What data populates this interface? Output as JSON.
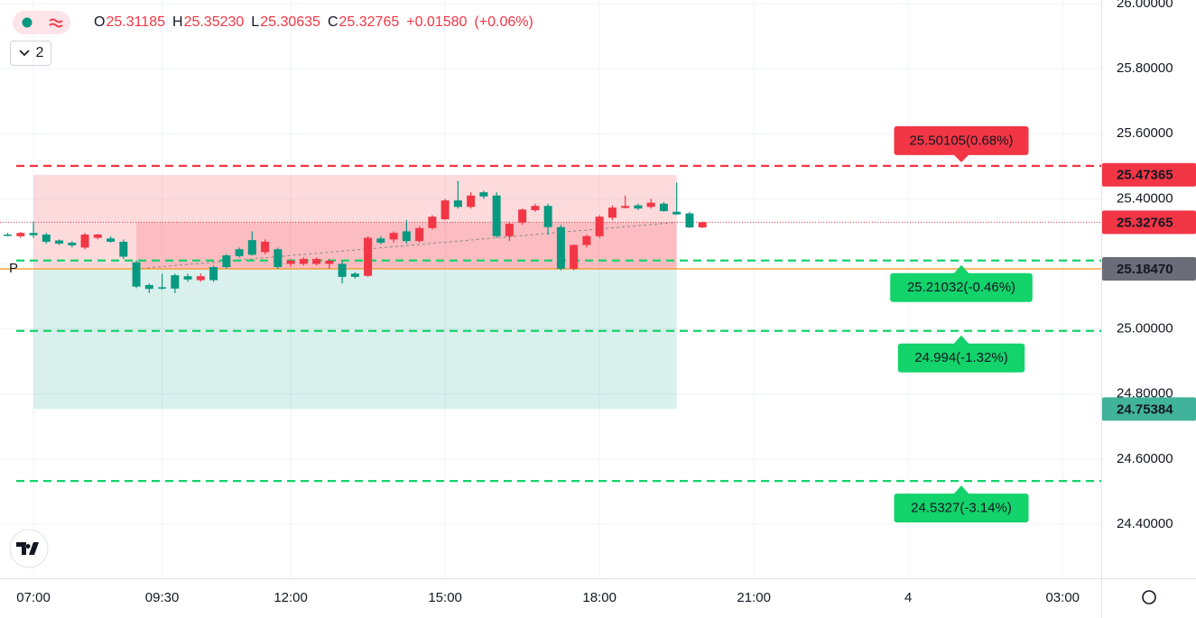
{
  "legend": {
    "open_label": "O",
    "open": "25.31185",
    "high_label": "H",
    "high": "25.35230",
    "low_label": "L",
    "low": "25.30635",
    "close_label": "C",
    "close": "25.32765",
    "change": "+0.01580",
    "change_pct": "(+0.06%)"
  },
  "indicator_count": 2,
  "chart_data": {
    "type": "candlestick",
    "up_color": "#089981",
    "down_color": "#f23645",
    "x": [
      6.5,
      6.75,
      7,
      7.25,
      7.5,
      7.75,
      8,
      8.25,
      8.5,
      8.75,
      9,
      9.25,
      9.5,
      9.75,
      10,
      10.25,
      10.5,
      10.75,
      11,
      11.25,
      11.5,
      11.75,
      12,
      12.25,
      12.5,
      12.75,
      13,
      13.25,
      13.5,
      13.75,
      14,
      14.25,
      14.5,
      14.75,
      15,
      15.25,
      15.5,
      15.75,
      16,
      16.25,
      16.5,
      16.75,
      17,
      17.25,
      17.5,
      17.75,
      18,
      18.25,
      18.5,
      18.75,
      19,
      19.25,
      19.5,
      19.75,
      20
    ],
    "open": [
      25.29,
      25.295,
      25.288,
      25.268,
      25.262,
      25.257,
      25.29,
      25.29,
      25.268,
      25.222,
      25.13,
      25.123,
      25.128,
      25.124,
      25.152,
      25.162,
      25.15,
      25.19,
      25.224,
      25.228,
      25.268,
      25.19,
      25.21,
      25.215,
      25.215,
      25.21,
      25.16,
      25.16,
      25.28,
      25.265,
      25.295,
      25.27,
      25.31,
      25.345,
      25.395,
      25.375,
      25.41,
      25.407,
      25.285,
      25.323,
      25.367,
      25.378,
      25.313,
      25.185,
      25.258,
      25.285,
      25.345,
      25.373,
      25.378,
      25.37,
      25.388,
      25.362,
      25.352,
      25.312,
      25.328
    ],
    "high": [
      25.295,
      25.298,
      25.33,
      25.295,
      25.275,
      25.27,
      25.295,
      25.292,
      25.285,
      25.275,
      25.21,
      25.14,
      25.17,
      25.17,
      25.17,
      25.17,
      25.195,
      25.23,
      25.25,
      25.3,
      25.275,
      25.25,
      25.215,
      25.22,
      25.22,
      25.215,
      25.21,
      25.175,
      25.285,
      25.285,
      25.3,
      25.335,
      25.315,
      25.35,
      25.4,
      25.455,
      25.42,
      25.425,
      25.42,
      25.33,
      25.37,
      25.385,
      25.385,
      25.32,
      25.26,
      25.29,
      25.35,
      25.38,
      25.41,
      25.385,
      25.4,
      25.39,
      25.45,
      25.36,
      25.33
    ],
    "low": [
      25.285,
      25.28,
      25.28,
      25.262,
      25.258,
      25.25,
      25.245,
      25.275,
      25.265,
      25.215,
      25.125,
      25.11,
      25.12,
      25.11,
      25.145,
      25.145,
      25.145,
      25.185,
      25.22,
      25.225,
      25.23,
      25.185,
      25.19,
      25.195,
      25.195,
      25.185,
      25.14,
      25.155,
      25.16,
      25.26,
      25.265,
      25.262,
      25.265,
      25.305,
      25.335,
      25.37,
      25.37,
      25.4,
      25.28,
      25.27,
      25.32,
      25.36,
      25.29,
      25.18,
      25.18,
      25.25,
      25.28,
      25.335,
      25.37,
      25.365,
      25.37,
      25.36,
      25.35,
      25.31,
      25.31
    ],
    "close": [
      25.29,
      25.285,
      25.295,
      25.29,
      25.272,
      25.265,
      25.25,
      25.28,
      25.278,
      25.268,
      25.205,
      25.135,
      25.128,
      25.165,
      25.162,
      25.15,
      25.19,
      25.226,
      25.245,
      25.273,
      25.236,
      25.245,
      25.2,
      25.2,
      25.2,
      25.2,
      25.2,
      25.17,
      25.163,
      25.278,
      25.275,
      25.3,
      25.27,
      25.31,
      25.337,
      25.395,
      25.375,
      25.42,
      25.41,
      25.285,
      25.327,
      25.365,
      25.378,
      25.313,
      25.185,
      25.258,
      25.285,
      25.342,
      25.372,
      25.38,
      25.375,
      25.385,
      25.36,
      25.355,
      25.312
    ],
    "xlim": [
      6.35,
      27.75
    ],
    "xticks": [
      {
        "value": 7,
        "label": "07:00"
      },
      {
        "value": 9.5,
        "label": "09:30"
      },
      {
        "value": 12,
        "label": "12:00"
      },
      {
        "value": 15,
        "label": "15:00"
      },
      {
        "value": 18,
        "label": "18:00"
      },
      {
        "value": 21,
        "label": "21:00"
      },
      {
        "value": 24,
        "label": "4"
      },
      {
        "value": 27,
        "label": "03:00"
      }
    ],
    "ylim": [
      24.2335,
      26.011
    ],
    "yticks": [
      {
        "value": 24.4,
        "label": "24.40000"
      },
      {
        "value": 24.6,
        "label": "24.60000"
      },
      {
        "value": 24.8,
        "label": "24.80000"
      },
      {
        "value": 25,
        "label": "25.00000"
      },
      {
        "value": 25.2,
        "label": "25.20000"
      },
      {
        "value": 25.4,
        "label": "25.40000"
      },
      {
        "value": 25.6,
        "label": "25.60000"
      },
      {
        "value": 25.8,
        "label": "25.80000"
      },
      {
        "value": 26,
        "label": "26.00000"
      }
    ],
    "grid": true,
    "position": {
      "start": 7,
      "open_x": 9,
      "end": 19.5,
      "entry": 25.1847,
      "target": 25.47365,
      "stop": 24.75384,
      "current": 25.32765,
      "entry_marker": "P"
    },
    "levels": [
      {
        "value": 25.50105,
        "label": "25.50105(0.68%)",
        "color": "#f23645",
        "side": "above"
      },
      {
        "value": 25.21032,
        "label": "25.21032(-0.46%)",
        "color": "#13d36b",
        "side": "below"
      },
      {
        "value": 24.994,
        "label": "24.994(-1.32%)",
        "color": "#13d36b",
        "side": "below"
      },
      {
        "value": 24.5327,
        "label": "24.5327(-3.14%)",
        "color": "#13d36b",
        "side": "below"
      }
    ],
    "axis_tags": [
      {
        "value": 25.47365,
        "label": "25.47365",
        "color": "#f23645"
      },
      {
        "value": 25.32765,
        "label": "25.32765",
        "color": "#f23645"
      },
      {
        "value": 25.1847,
        "label": "25.18470",
        "color": "#6a6d78"
      },
      {
        "value": 24.75384,
        "label": "24.75384",
        "color": "#42b39b"
      }
    ]
  }
}
